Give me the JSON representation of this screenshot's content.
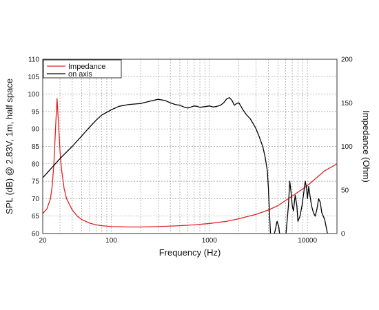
{
  "chart_data": {
    "type": "line",
    "xlabel": "Frequency (Hz)",
    "ylabel_left": "SPL (dB) @ 2.83V, 1m, half space",
    "ylabel_right": "Impedance (Ohm)",
    "x_scale": "log",
    "xlim": [
      20,
      20000
    ],
    "ylim_left": [
      60,
      110
    ],
    "ylim_right": [
      0,
      200
    ],
    "x_ticks": [
      "20",
      "100",
      "1000",
      "10000"
    ],
    "y_ticks_left": [
      "60",
      "65",
      "70",
      "75",
      "80",
      "85",
      "90",
      "95",
      "100",
      "105",
      "110"
    ],
    "y_ticks_right": [
      "0",
      "50",
      "100",
      "150",
      "200"
    ],
    "grid": true,
    "legend_position": "top-left",
    "series": [
      {
        "name": "Impedance",
        "axis": "right",
        "color": "#e02020",
        "points": [
          [
            20,
            23
          ],
          [
            22,
            28
          ],
          [
            24,
            40
          ],
          [
            25,
            55
          ],
          [
            26,
            80
          ],
          [
            27,
            120
          ],
          [
            28,
            155
          ],
          [
            29,
            125
          ],
          [
            30,
            95
          ],
          [
            31,
            75
          ],
          [
            33,
            52
          ],
          [
            35,
            40
          ],
          [
            40,
            27
          ],
          [
            45,
            20
          ],
          [
            50,
            16
          ],
          [
            60,
            12
          ],
          [
            70,
            10
          ],
          [
            80,
            9
          ],
          [
            100,
            8
          ],
          [
            150,
            7.5
          ],
          [
            200,
            7.5
          ],
          [
            300,
            8
          ],
          [
            500,
            9
          ],
          [
            700,
            10
          ],
          [
            1000,
            11.5
          ],
          [
            1500,
            14
          ],
          [
            2000,
            17
          ],
          [
            3000,
            22
          ],
          [
            4000,
            27
          ],
          [
            5000,
            32
          ],
          [
            7000,
            43
          ],
          [
            10000,
            55
          ],
          [
            15000,
            72
          ],
          [
            20000,
            80
          ]
        ]
      },
      {
        "name": "on axis",
        "axis": "left",
        "color": "#000000",
        "points": [
          [
            20,
            76
          ],
          [
            25,
            79
          ],
          [
            30,
            81.5
          ],
          [
            40,
            85
          ],
          [
            50,
            88
          ],
          [
            60,
            90.5
          ],
          [
            70,
            92.5
          ],
          [
            80,
            94
          ],
          [
            100,
            95.5
          ],
          [
            120,
            96.5
          ],
          [
            150,
            97
          ],
          [
            200,
            97.3
          ],
          [
            250,
            98
          ],
          [
            300,
            98.5
          ],
          [
            350,
            98.2
          ],
          [
            400,
            97.5
          ],
          [
            450,
            97
          ],
          [
            500,
            96.8
          ],
          [
            550,
            96.3
          ],
          [
            600,
            96
          ],
          [
            650,
            96.3
          ],
          [
            700,
            96.6
          ],
          [
            750,
            96.5
          ],
          [
            800,
            96.2
          ],
          [
            900,
            96.4
          ],
          [
            1000,
            96.6
          ],
          [
            1100,
            96.3
          ],
          [
            1200,
            96.5
          ],
          [
            1300,
            96.8
          ],
          [
            1400,
            97.5
          ],
          [
            1500,
            98.6
          ],
          [
            1600,
            99
          ],
          [
            1700,
            98.2
          ],
          [
            1800,
            96.8
          ],
          [
            1900,
            97.3
          ],
          [
            2000,
            97.5
          ],
          [
            2100,
            96.5
          ],
          [
            2200,
            95.5
          ],
          [
            2400,
            94
          ],
          [
            2600,
            93
          ],
          [
            2800,
            91.5
          ],
          [
            3000,
            90
          ],
          [
            3200,
            88
          ],
          [
            3500,
            85
          ],
          [
            3700,
            82
          ],
          [
            3900,
            78
          ],
          [
            4000,
            73
          ],
          [
            4100,
            66
          ],
          [
            4200,
            60
          ],
          [
            4500,
            59
          ],
          [
            4700,
            61
          ],
          [
            4900,
            63.5
          ],
          [
            5100,
            62
          ],
          [
            5300,
            58
          ],
          [
            6000,
            59
          ],
          [
            6400,
            68
          ],
          [
            6600,
            75
          ],
          [
            6800,
            72
          ],
          [
            7000,
            68
          ],
          [
            7200,
            66.5
          ],
          [
            7500,
            71
          ],
          [
            7800,
            68
          ],
          [
            8000,
            63.5
          ],
          [
            8400,
            65
          ],
          [
            8800,
            68
          ],
          [
            9200,
            72
          ],
          [
            9500,
            75
          ],
          [
            9800,
            73
          ],
          [
            10000,
            70
          ],
          [
            10300,
            73.5
          ],
          [
            10600,
            71
          ],
          [
            11000,
            68
          ],
          [
            11500,
            66
          ],
          [
            12000,
            65
          ],
          [
            12500,
            67
          ],
          [
            13000,
            70
          ],
          [
            13500,
            69
          ],
          [
            14000,
            66
          ],
          [
            15000,
            64
          ],
          [
            16000,
            60
          ],
          [
            17000,
            58
          ]
        ]
      }
    ]
  }
}
